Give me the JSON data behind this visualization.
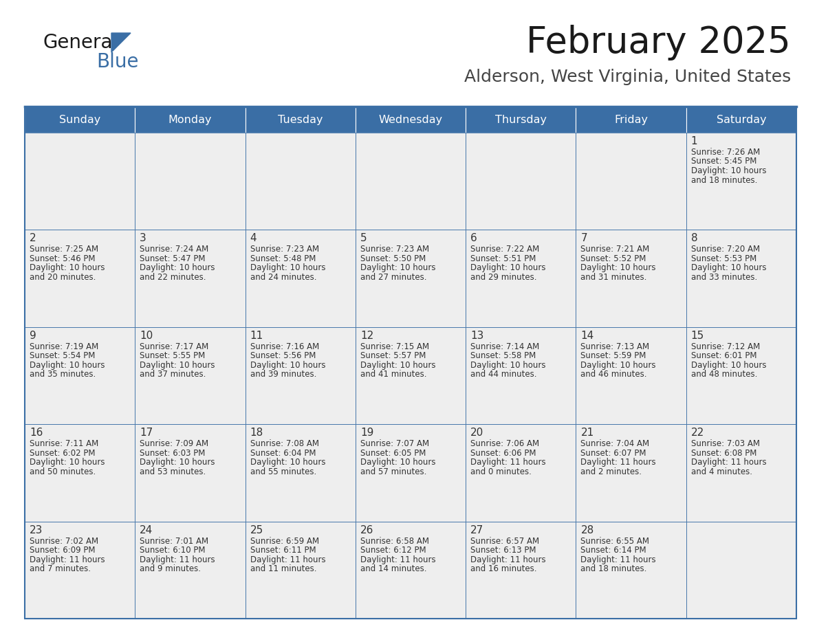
{
  "title": "February 2025",
  "subtitle": "Alderson, West Virginia, United States",
  "header_color": "#3a6ea5",
  "header_text_color": "#ffffff",
  "cell_bg_color": "#eeeeee",
  "border_color": "#3a6ea5",
  "day_headers": [
    "Sunday",
    "Monday",
    "Tuesday",
    "Wednesday",
    "Thursday",
    "Friday",
    "Saturday"
  ],
  "title_color": "#1a1a1a",
  "subtitle_color": "#444444",
  "number_color": "#333333",
  "text_color": "#333333",
  "calendar_data": [
    [
      null,
      null,
      null,
      null,
      null,
      null,
      {
        "day": "1",
        "sunrise": "7:26 AM",
        "sunset": "5:45 PM",
        "daylight_line1": "Daylight: 10 hours",
        "daylight_line2": "and 18 minutes."
      }
    ],
    [
      {
        "day": "2",
        "sunrise": "7:25 AM",
        "sunset": "5:46 PM",
        "daylight_line1": "Daylight: 10 hours",
        "daylight_line2": "and 20 minutes."
      },
      {
        "day": "3",
        "sunrise": "7:24 AM",
        "sunset": "5:47 PM",
        "daylight_line1": "Daylight: 10 hours",
        "daylight_line2": "and 22 minutes."
      },
      {
        "day": "4",
        "sunrise": "7:23 AM",
        "sunset": "5:48 PM",
        "daylight_line1": "Daylight: 10 hours",
        "daylight_line2": "and 24 minutes."
      },
      {
        "day": "5",
        "sunrise": "7:23 AM",
        "sunset": "5:50 PM",
        "daylight_line1": "Daylight: 10 hours",
        "daylight_line2": "and 27 minutes."
      },
      {
        "day": "6",
        "sunrise": "7:22 AM",
        "sunset": "5:51 PM",
        "daylight_line1": "Daylight: 10 hours",
        "daylight_line2": "and 29 minutes."
      },
      {
        "day": "7",
        "sunrise": "7:21 AM",
        "sunset": "5:52 PM",
        "daylight_line1": "Daylight: 10 hours",
        "daylight_line2": "and 31 minutes."
      },
      {
        "day": "8",
        "sunrise": "7:20 AM",
        "sunset": "5:53 PM",
        "daylight_line1": "Daylight: 10 hours",
        "daylight_line2": "and 33 minutes."
      }
    ],
    [
      {
        "day": "9",
        "sunrise": "7:19 AM",
        "sunset": "5:54 PM",
        "daylight_line1": "Daylight: 10 hours",
        "daylight_line2": "and 35 minutes."
      },
      {
        "day": "10",
        "sunrise": "7:17 AM",
        "sunset": "5:55 PM",
        "daylight_line1": "Daylight: 10 hours",
        "daylight_line2": "and 37 minutes."
      },
      {
        "day": "11",
        "sunrise": "7:16 AM",
        "sunset": "5:56 PM",
        "daylight_line1": "Daylight: 10 hours",
        "daylight_line2": "and 39 minutes."
      },
      {
        "day": "12",
        "sunrise": "7:15 AM",
        "sunset": "5:57 PM",
        "daylight_line1": "Daylight: 10 hours",
        "daylight_line2": "and 41 minutes."
      },
      {
        "day": "13",
        "sunrise": "7:14 AM",
        "sunset": "5:58 PM",
        "daylight_line1": "Daylight: 10 hours",
        "daylight_line2": "and 44 minutes."
      },
      {
        "day": "14",
        "sunrise": "7:13 AM",
        "sunset": "5:59 PM",
        "daylight_line1": "Daylight: 10 hours",
        "daylight_line2": "and 46 minutes."
      },
      {
        "day": "15",
        "sunrise": "7:12 AM",
        "sunset": "6:01 PM",
        "daylight_line1": "Daylight: 10 hours",
        "daylight_line2": "and 48 minutes."
      }
    ],
    [
      {
        "day": "16",
        "sunrise": "7:11 AM",
        "sunset": "6:02 PM",
        "daylight_line1": "Daylight: 10 hours",
        "daylight_line2": "and 50 minutes."
      },
      {
        "day": "17",
        "sunrise": "7:09 AM",
        "sunset": "6:03 PM",
        "daylight_line1": "Daylight: 10 hours",
        "daylight_line2": "and 53 minutes."
      },
      {
        "day": "18",
        "sunrise": "7:08 AM",
        "sunset": "6:04 PM",
        "daylight_line1": "Daylight: 10 hours",
        "daylight_line2": "and 55 minutes."
      },
      {
        "day": "19",
        "sunrise": "7:07 AM",
        "sunset": "6:05 PM",
        "daylight_line1": "Daylight: 10 hours",
        "daylight_line2": "and 57 minutes."
      },
      {
        "day": "20",
        "sunrise": "7:06 AM",
        "sunset": "6:06 PM",
        "daylight_line1": "Daylight: 11 hours",
        "daylight_line2": "and 0 minutes."
      },
      {
        "day": "21",
        "sunrise": "7:04 AM",
        "sunset": "6:07 PM",
        "daylight_line1": "Daylight: 11 hours",
        "daylight_line2": "and 2 minutes."
      },
      {
        "day": "22",
        "sunrise": "7:03 AM",
        "sunset": "6:08 PM",
        "daylight_line1": "Daylight: 11 hours",
        "daylight_line2": "and 4 minutes."
      }
    ],
    [
      {
        "day": "23",
        "sunrise": "7:02 AM",
        "sunset": "6:09 PM",
        "daylight_line1": "Daylight: 11 hours",
        "daylight_line2": "and 7 minutes."
      },
      {
        "day": "24",
        "sunrise": "7:01 AM",
        "sunset": "6:10 PM",
        "daylight_line1": "Daylight: 11 hours",
        "daylight_line2": "and 9 minutes."
      },
      {
        "day": "25",
        "sunrise": "6:59 AM",
        "sunset": "6:11 PM",
        "daylight_line1": "Daylight: 11 hours",
        "daylight_line2": "and 11 minutes."
      },
      {
        "day": "26",
        "sunrise": "6:58 AM",
        "sunset": "6:12 PM",
        "daylight_line1": "Daylight: 11 hours",
        "daylight_line2": "and 14 minutes."
      },
      {
        "day": "27",
        "sunrise": "6:57 AM",
        "sunset": "6:13 PM",
        "daylight_line1": "Daylight: 11 hours",
        "daylight_line2": "and 16 minutes."
      },
      {
        "day": "28",
        "sunrise": "6:55 AM",
        "sunset": "6:14 PM",
        "daylight_line1": "Daylight: 11 hours",
        "daylight_line2": "and 18 minutes."
      },
      null
    ]
  ],
  "logo_color_general": "#1a1a1a",
  "logo_color_blue": "#3a6ea5"
}
